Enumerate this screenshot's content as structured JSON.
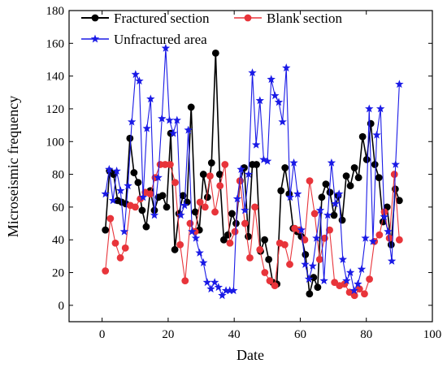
{
  "chart_data": {
    "type": "line",
    "xlabel": "Date",
    "ylabel": "Microseismic frequency",
    "xlim": [
      -10,
      100
    ],
    "ylim": [
      -10,
      180
    ],
    "xticks": [
      0,
      20,
      40,
      60,
      80,
      100
    ],
    "yticks": [
      0,
      20,
      40,
      60,
      80,
      100,
      120,
      140,
      160,
      180
    ],
    "grid": false,
    "legend": "top",
    "series": [
      {
        "name": "Fractured section",
        "color": "#000000",
        "marker": "circle",
        "values": [
          46,
          82,
          80,
          64,
          63,
          62,
          102,
          81,
          75,
          58,
          48,
          70,
          58,
          66,
          67,
          60,
          105,
          34,
          56,
          67,
          63,
          121,
          57,
          46,
          80,
          66,
          87,
          154,
          80,
          40,
          43,
          56,
          50,
          76,
          84,
          42,
          86,
          86,
          33,
          40,
          28,
          14,
          13,
          70,
          84,
          68,
          47,
          45,
          42,
          31,
          7,
          17,
          11,
          66,
          74,
          69,
          55,
          67,
          52,
          79,
          73,
          84,
          78,
          103,
          89,
          111,
          86,
          78,
          51,
          60,
          37,
          71,
          64
        ]
      },
      {
        "name": "Blank section",
        "color": "#e8343a",
        "marker": "circle",
        "values": [
          21,
          53,
          38,
          29,
          35,
          61,
          60,
          65,
          69,
          68,
          78,
          86,
          86,
          86,
          75,
          37,
          15,
          50,
          45,
          63,
          60,
          79,
          57,
          73,
          86,
          38,
          45,
          76,
          50,
          29,
          60,
          34,
          20,
          15,
          12,
          38,
          37,
          25,
          47,
          46,
          40,
          76,
          56,
          28,
          41,
          46,
          14,
          12,
          13,
          8,
          6,
          10,
          7,
          16,
          39,
          43,
          57,
          41,
          80,
          40
        ]
      },
      {
        "name": "Unfractured area",
        "color": "#1a1ae6",
        "marker": "star",
        "values": [
          68,
          83,
          64,
          82,
          70,
          45,
          73,
          112,
          141,
          137,
          66,
          108,
          126,
          55,
          78,
          114,
          157,
          113,
          105,
          113,
          55,
          61,
          107,
          45,
          41,
          32,
          26,
          14,
          10,
          14,
          11,
          6,
          9,
          9,
          9,
          65,
          83,
          58,
          80,
          142,
          98,
          125,
          89,
          88,
          138,
          128,
          124,
          112,
          145,
          66,
          87,
          68,
          46,
          25,
          16,
          24,
          41,
          58,
          15,
          55,
          87,
          62,
          68,
          28,
          15,
          20,
          9,
          13,
          22,
          41,
          120,
          39,
          104,
          120,
          54,
          45,
          27,
          86,
          135
        ]
      }
    ]
  }
}
